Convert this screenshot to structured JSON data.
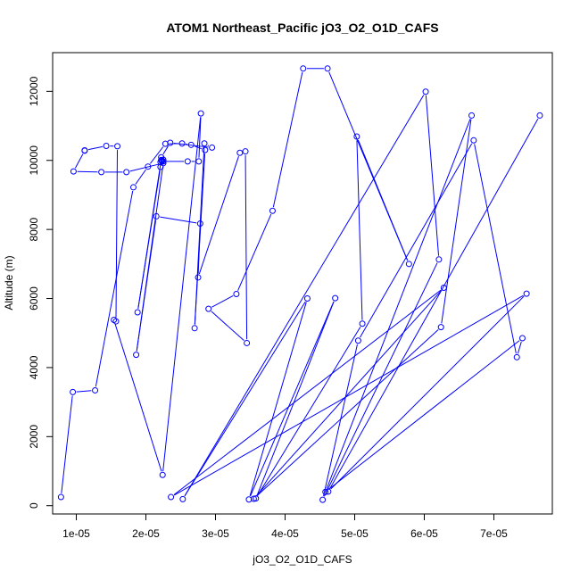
{
  "chart_data": {
    "type": "line",
    "title": "ATOM1 Northeast_Pacific jO3_O2_O1D_CAFS",
    "xlabel": "jO3_O2_O1D_CAFS",
    "ylabel": "Altitude (m)",
    "xlim": [
      6.6e-06,
      7.84e-05
    ],
    "ylim": [
      -240,
      13120
    ],
    "x_ticks": [
      1e-05,
      2e-05,
      3e-05,
      4e-05,
      5e-05,
      6e-05,
      7e-05
    ],
    "x_tick_labels": [
      "1e-05",
      "2e-05",
      "3e-05",
      "4e-05",
      "5e-05",
      "6e-05",
      "7e-05"
    ],
    "y_ticks": [
      0,
      2000,
      4000,
      6000,
      8000,
      10000,
      12000
    ],
    "y_tick_labels": [
      "0",
      "2000",
      "4000",
      "6000",
      "8000",
      "10000",
      "12000"
    ],
    "grid": false,
    "legend": "none",
    "series": [
      {
        "color": "#0000ff",
        "marker": "open-circle",
        "points": [
          [
            7.8e-06,
            250
          ],
          [
            9.5e-06,
            3290
          ],
          [
            1.27e-05,
            3340
          ],
          [
            1.82e-05,
            9220
          ],
          [
            2.03e-05,
            9820
          ],
          [
            2.28e-05,
            10480
          ],
          [
            2.52e-05,
            10490
          ],
          [
            2.65e-05,
            10450
          ],
          [
            2.85e-05,
            10300
          ],
          [
            2.7e-05,
            5140
          ],
          [
            2.84e-05,
            10490
          ],
          [
            2.95e-05,
            10370
          ],
          [
            2.35e-05,
            10510
          ],
          [
            2.22e-05,
            10090
          ],
          [
            2.21e-05,
            9950
          ],
          [
            2.25e-05,
            9970
          ],
          [
            2.21e-05,
            9810
          ],
          [
            1.88e-05,
            5600
          ],
          [
            2.22e-05,
            10010
          ],
          [
            2.23e-05,
            9990
          ],
          [
            2.25e-05,
            10020
          ],
          [
            2.23e-05,
            9970
          ],
          [
            2.6e-05,
            9970
          ],
          [
            2.76e-05,
            9970
          ],
          [
            2.79e-05,
            11360
          ],
          [
            2.24e-05,
            890
          ],
          [
            1.54e-05,
            5380
          ],
          [
            1.57e-05,
            5340
          ],
          [
            1.59e-05,
            10410
          ],
          [
            1.43e-05,
            10420
          ],
          [
            1.12e-05,
            10290
          ],
          [
            1.12e-05,
            10280
          ],
          [
            9.6e-06,
            9680
          ],
          [
            1.36e-05,
            9660
          ],
          [
            1.72e-05,
            9660
          ],
          [
            2.25e-05,
            9920
          ],
          [
            1.86e-05,
            4370
          ],
          [
            2.15e-05,
            8380
          ],
          [
            2.78e-05,
            8170
          ],
          [
            2.75e-05,
            6610
          ],
          [
            3.35e-05,
            10220
          ],
          [
            3.43e-05,
            10260
          ],
          [
            3.45e-05,
            4710
          ],
          [
            2.9e-05,
            5700
          ],
          [
            3.3e-05,
            6130
          ],
          [
            3.82e-05,
            8540
          ],
          [
            4.26e-05,
            12660
          ],
          [
            4.61e-05,
            12660
          ],
          [
            5.78e-05,
            7000
          ],
          [
            5.03e-05,
            10690
          ],
          [
            5.11e-05,
            5270
          ],
          [
            3.58e-05,
            210
          ],
          [
            4.72e-05,
            6010
          ],
          [
            3.48e-05,
            180
          ],
          [
            4.32e-05,
            6000
          ],
          [
            2.53e-05,
            190
          ],
          [
            6.02e-05,
            11990
          ],
          [
            6.21e-05,
            7130
          ],
          [
            4.54e-05,
            170
          ],
          [
            5.05e-05,
            4780
          ],
          [
            6.71e-05,
            10580
          ],
          [
            7.33e-05,
            4300
          ],
          [
            7.41e-05,
            4850
          ],
          [
            4.58e-05,
            400
          ],
          [
            6.68e-05,
            11300
          ],
          [
            6.24e-05,
            5170
          ],
          [
            3.55e-05,
            200
          ],
          [
            6.28e-05,
            6310
          ],
          [
            2.36e-05,
            250
          ],
          [
            7.47e-05,
            6140
          ],
          [
            4.62e-05,
            410
          ],
          [
            7.66e-05,
            11300
          ]
        ]
      }
    ]
  }
}
